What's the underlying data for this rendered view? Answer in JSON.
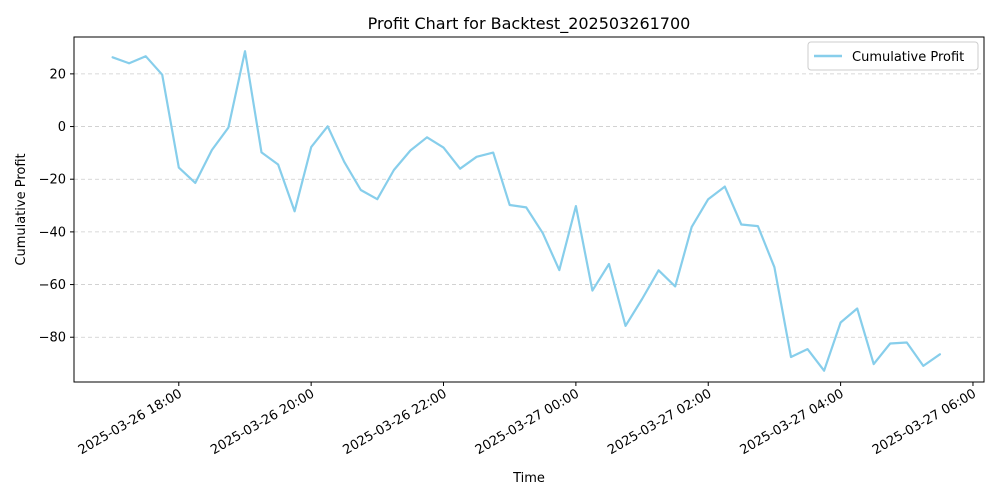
{
  "chart_data": {
    "type": "line",
    "title": "Profit Chart for Backtest_202503261700",
    "xlabel": "Time",
    "ylabel": "Cumulative Profit",
    "grid": "horizontal dashed",
    "legend_position": "top-right",
    "x_ticks": [
      "2025-03-26 18:00",
      "2025-03-26 20:00",
      "2025-03-26 22:00",
      "2025-03-27 00:00",
      "2025-03-27 02:00",
      "2025-03-27 04:00",
      "2025-03-27 06:00"
    ],
    "y_ticks": [
      -80,
      -60,
      -40,
      -20,
      0,
      20
    ],
    "ylim": [
      -97,
      34
    ],
    "xlim": [
      "2025-03-26 16:25",
      "2025-03-27 06:10"
    ],
    "colors": {
      "line": "#87ceeb",
      "grid": "#cccccc"
    },
    "series": [
      {
        "name": "Cumulative Profit",
        "x": [
          "2025-03-26 17:00",
          "2025-03-26 17:15",
          "2025-03-26 17:30",
          "2025-03-26 17:45",
          "2025-03-26 18:00",
          "2025-03-26 18:15",
          "2025-03-26 18:30",
          "2025-03-26 18:45",
          "2025-03-26 19:00",
          "2025-03-26 19:15",
          "2025-03-26 19:30",
          "2025-03-26 19:45",
          "2025-03-26 20:00",
          "2025-03-26 20:15",
          "2025-03-26 20:30",
          "2025-03-26 20:45",
          "2025-03-26 21:00",
          "2025-03-26 21:15",
          "2025-03-26 21:30",
          "2025-03-26 21:45",
          "2025-03-26 22:00",
          "2025-03-26 22:15",
          "2025-03-26 22:30",
          "2025-03-26 22:45",
          "2025-03-26 23:00",
          "2025-03-26 23:15",
          "2025-03-26 23:30",
          "2025-03-26 23:45",
          "2025-03-27 00:00",
          "2025-03-27 00:15",
          "2025-03-27 00:30",
          "2025-03-27 00:45",
          "2025-03-27 01:00",
          "2025-03-27 01:15",
          "2025-03-27 01:30",
          "2025-03-27 01:45",
          "2025-03-27 02:00",
          "2025-03-27 02:15",
          "2025-03-27 02:30",
          "2025-03-27 02:45",
          "2025-03-27 03:00",
          "2025-03-27 03:15",
          "2025-03-27 03:30",
          "2025-03-27 03:45",
          "2025-03-27 04:00",
          "2025-03-27 04:15",
          "2025-03-27 04:30",
          "2025-03-27 04:45",
          "2025-03-27 05:00",
          "2025-03-27 05:15",
          "2025-03-27 05:30"
        ],
        "y": [
          26.3,
          24.0,
          26.7,
          19.7,
          -15.6,
          -21.4,
          -8.9,
          -0.4,
          28.6,
          -9.8,
          -14.4,
          -32.2,
          -7.8,
          0.1,
          -13.4,
          -24.1,
          -27.6,
          -16.5,
          -9.1,
          -4.1,
          -8.0,
          -16.0,
          -11.5,
          -9.9,
          -29.8,
          -30.7,
          -40.5,
          -54.5,
          -30.2,
          -62.3,
          -52.2,
          -75.7,
          -65.5,
          -54.6,
          -60.7,
          -38.1,
          -27.6,
          -22.8,
          -37.2,
          -37.8,
          -53.4,
          -87.5,
          -84.5,
          -92.7,
          -74.4,
          -69.1,
          -90.2,
          -82.4,
          -82.0,
          -90.9,
          -86.5
        ]
      }
    ]
  }
}
